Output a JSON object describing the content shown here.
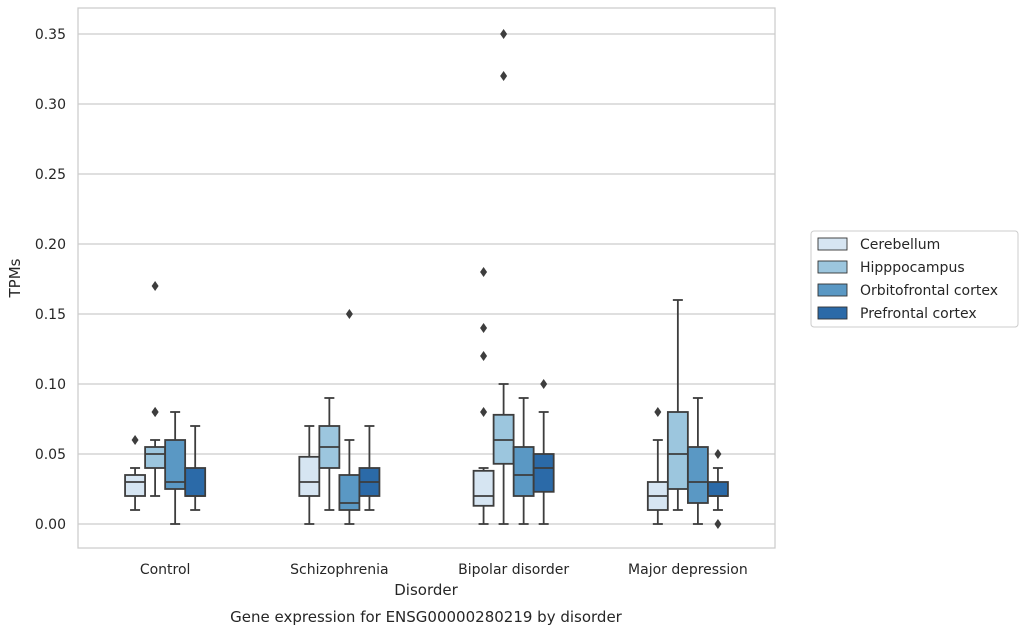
{
  "chart_data": {
    "type": "box",
    "title": "",
    "caption": "Gene expression for ENSG00000280219 by disorder",
    "xlabel": "Disorder",
    "ylabel": "TPMs",
    "ylim": [
      -0.017,
      0.368
    ],
    "yticks": [
      "0.00",
      "0.05",
      "0.10",
      "0.15",
      "0.20",
      "0.25",
      "0.30",
      "0.35"
    ],
    "ytick_values": [
      0,
      0.05,
      0.1,
      0.15,
      0.2,
      0.25,
      0.3,
      0.35
    ],
    "grid": true,
    "legend_position": "right",
    "categories": [
      "Control",
      "Schizophrenia",
      "Bipolar disorder",
      "Major depression"
    ],
    "series": [
      {
        "name": "Cerebellum",
        "color": "#d6e5f2",
        "boxes": [
          {
            "whislo": 0.01,
            "q1": 0.02,
            "med": 0.03,
            "q3": 0.035,
            "whishi": 0.04,
            "fliers": [
              0.06
            ]
          },
          {
            "whislo": 0.0,
            "q1": 0.02,
            "med": 0.03,
            "q3": 0.048,
            "whishi": 0.07,
            "fliers": []
          },
          {
            "whislo": 0.0,
            "q1": 0.013,
            "med": 0.02,
            "q3": 0.038,
            "whishi": 0.04,
            "fliers": [
              0.08,
              0.12,
              0.14,
              0.18
            ]
          },
          {
            "whislo": 0.0,
            "q1": 0.01,
            "med": 0.02,
            "q3": 0.03,
            "whishi": 0.06,
            "fliers": [
              0.08
            ]
          }
        ]
      },
      {
        "name": "Hipppocampus",
        "color": "#9cc6de",
        "boxes": [
          {
            "whislo": 0.02,
            "q1": 0.04,
            "med": 0.05,
            "q3": 0.055,
            "whishi": 0.06,
            "fliers": [
              0.08,
              0.08,
              0.17
            ]
          },
          {
            "whislo": 0.01,
            "q1": 0.04,
            "med": 0.055,
            "q3": 0.07,
            "whishi": 0.09,
            "fliers": []
          },
          {
            "whislo": 0.0,
            "q1": 0.043,
            "med": 0.06,
            "q3": 0.078,
            "whishi": 0.1,
            "fliers": [
              0.32,
              0.35
            ]
          },
          {
            "whislo": 0.01,
            "q1": 0.025,
            "med": 0.05,
            "q3": 0.08,
            "whishi": 0.16,
            "fliers": []
          }
        ]
      },
      {
        "name": "Orbitofrontal cortex",
        "color": "#5a98c4",
        "boxes": [
          {
            "whislo": 0.0,
            "q1": 0.025,
            "med": 0.03,
            "q3": 0.06,
            "whishi": 0.08,
            "fliers": []
          },
          {
            "whislo": 0.0,
            "q1": 0.01,
            "med": 0.015,
            "q3": 0.035,
            "whishi": 0.06,
            "fliers": [
              0.15
            ]
          },
          {
            "whislo": 0.0,
            "q1": 0.02,
            "med": 0.035,
            "q3": 0.055,
            "whishi": 0.09,
            "fliers": []
          },
          {
            "whislo": 0.0,
            "q1": 0.015,
            "med": 0.03,
            "q3": 0.055,
            "whishi": 0.09,
            "fliers": []
          }
        ]
      },
      {
        "name": "Prefrontal cortex",
        "color": "#2b6aa8",
        "boxes": [
          {
            "whislo": 0.01,
            "q1": 0.02,
            "med": 0.02,
            "q3": 0.04,
            "whishi": 0.07,
            "fliers": []
          },
          {
            "whislo": 0.01,
            "q1": 0.02,
            "med": 0.03,
            "q3": 0.04,
            "whishi": 0.07,
            "fliers": []
          },
          {
            "whislo": 0.0,
            "q1": 0.023,
            "med": 0.04,
            "q3": 0.05,
            "whishi": 0.08,
            "fliers": [
              0.1
            ]
          },
          {
            "whislo": 0.01,
            "q1": 0.02,
            "med": 0.02,
            "q3": 0.03,
            "whishi": 0.04,
            "fliers": [
              0.0,
              0.05
            ]
          }
        ]
      }
    ]
  }
}
